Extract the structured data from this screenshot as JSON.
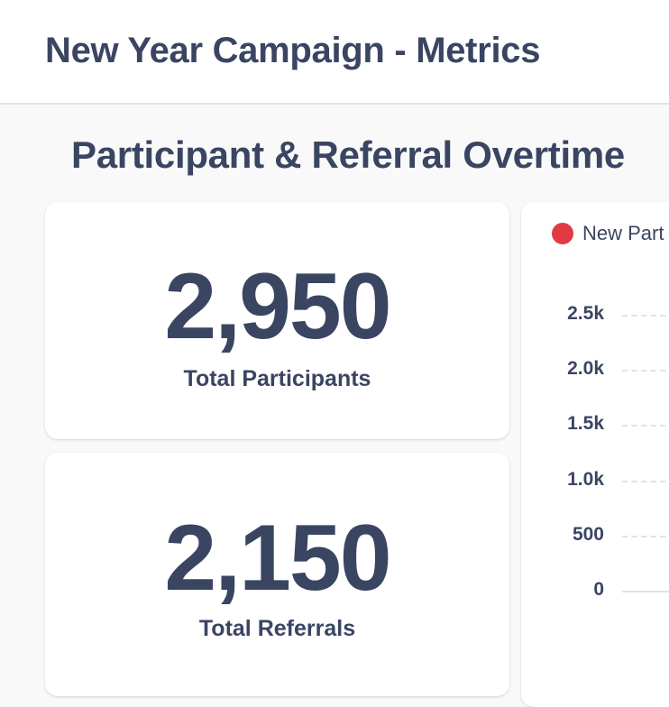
{
  "header": {
    "title": "New Year Campaign - Metrics"
  },
  "section": {
    "title": "Participant & Referral Overtime"
  },
  "stats": [
    {
      "value": "2,950",
      "label": "Total Participants"
    },
    {
      "value": "2,150",
      "label": "Total Referrals"
    }
  ],
  "chart_data": {
    "type": "line",
    "legend": [
      {
        "label": "New Part",
        "color": "#e03a45"
      }
    ],
    "y_ticks": [
      "2.5k",
      "2.0k",
      "1.5k",
      "1.0k",
      "500",
      "0"
    ],
    "y_tick_values": [
      2500,
      2000,
      1500,
      1000,
      500,
      0
    ],
    "ylim": [
      0,
      2500
    ],
    "grid": true,
    "legend_position": "top-left"
  }
}
